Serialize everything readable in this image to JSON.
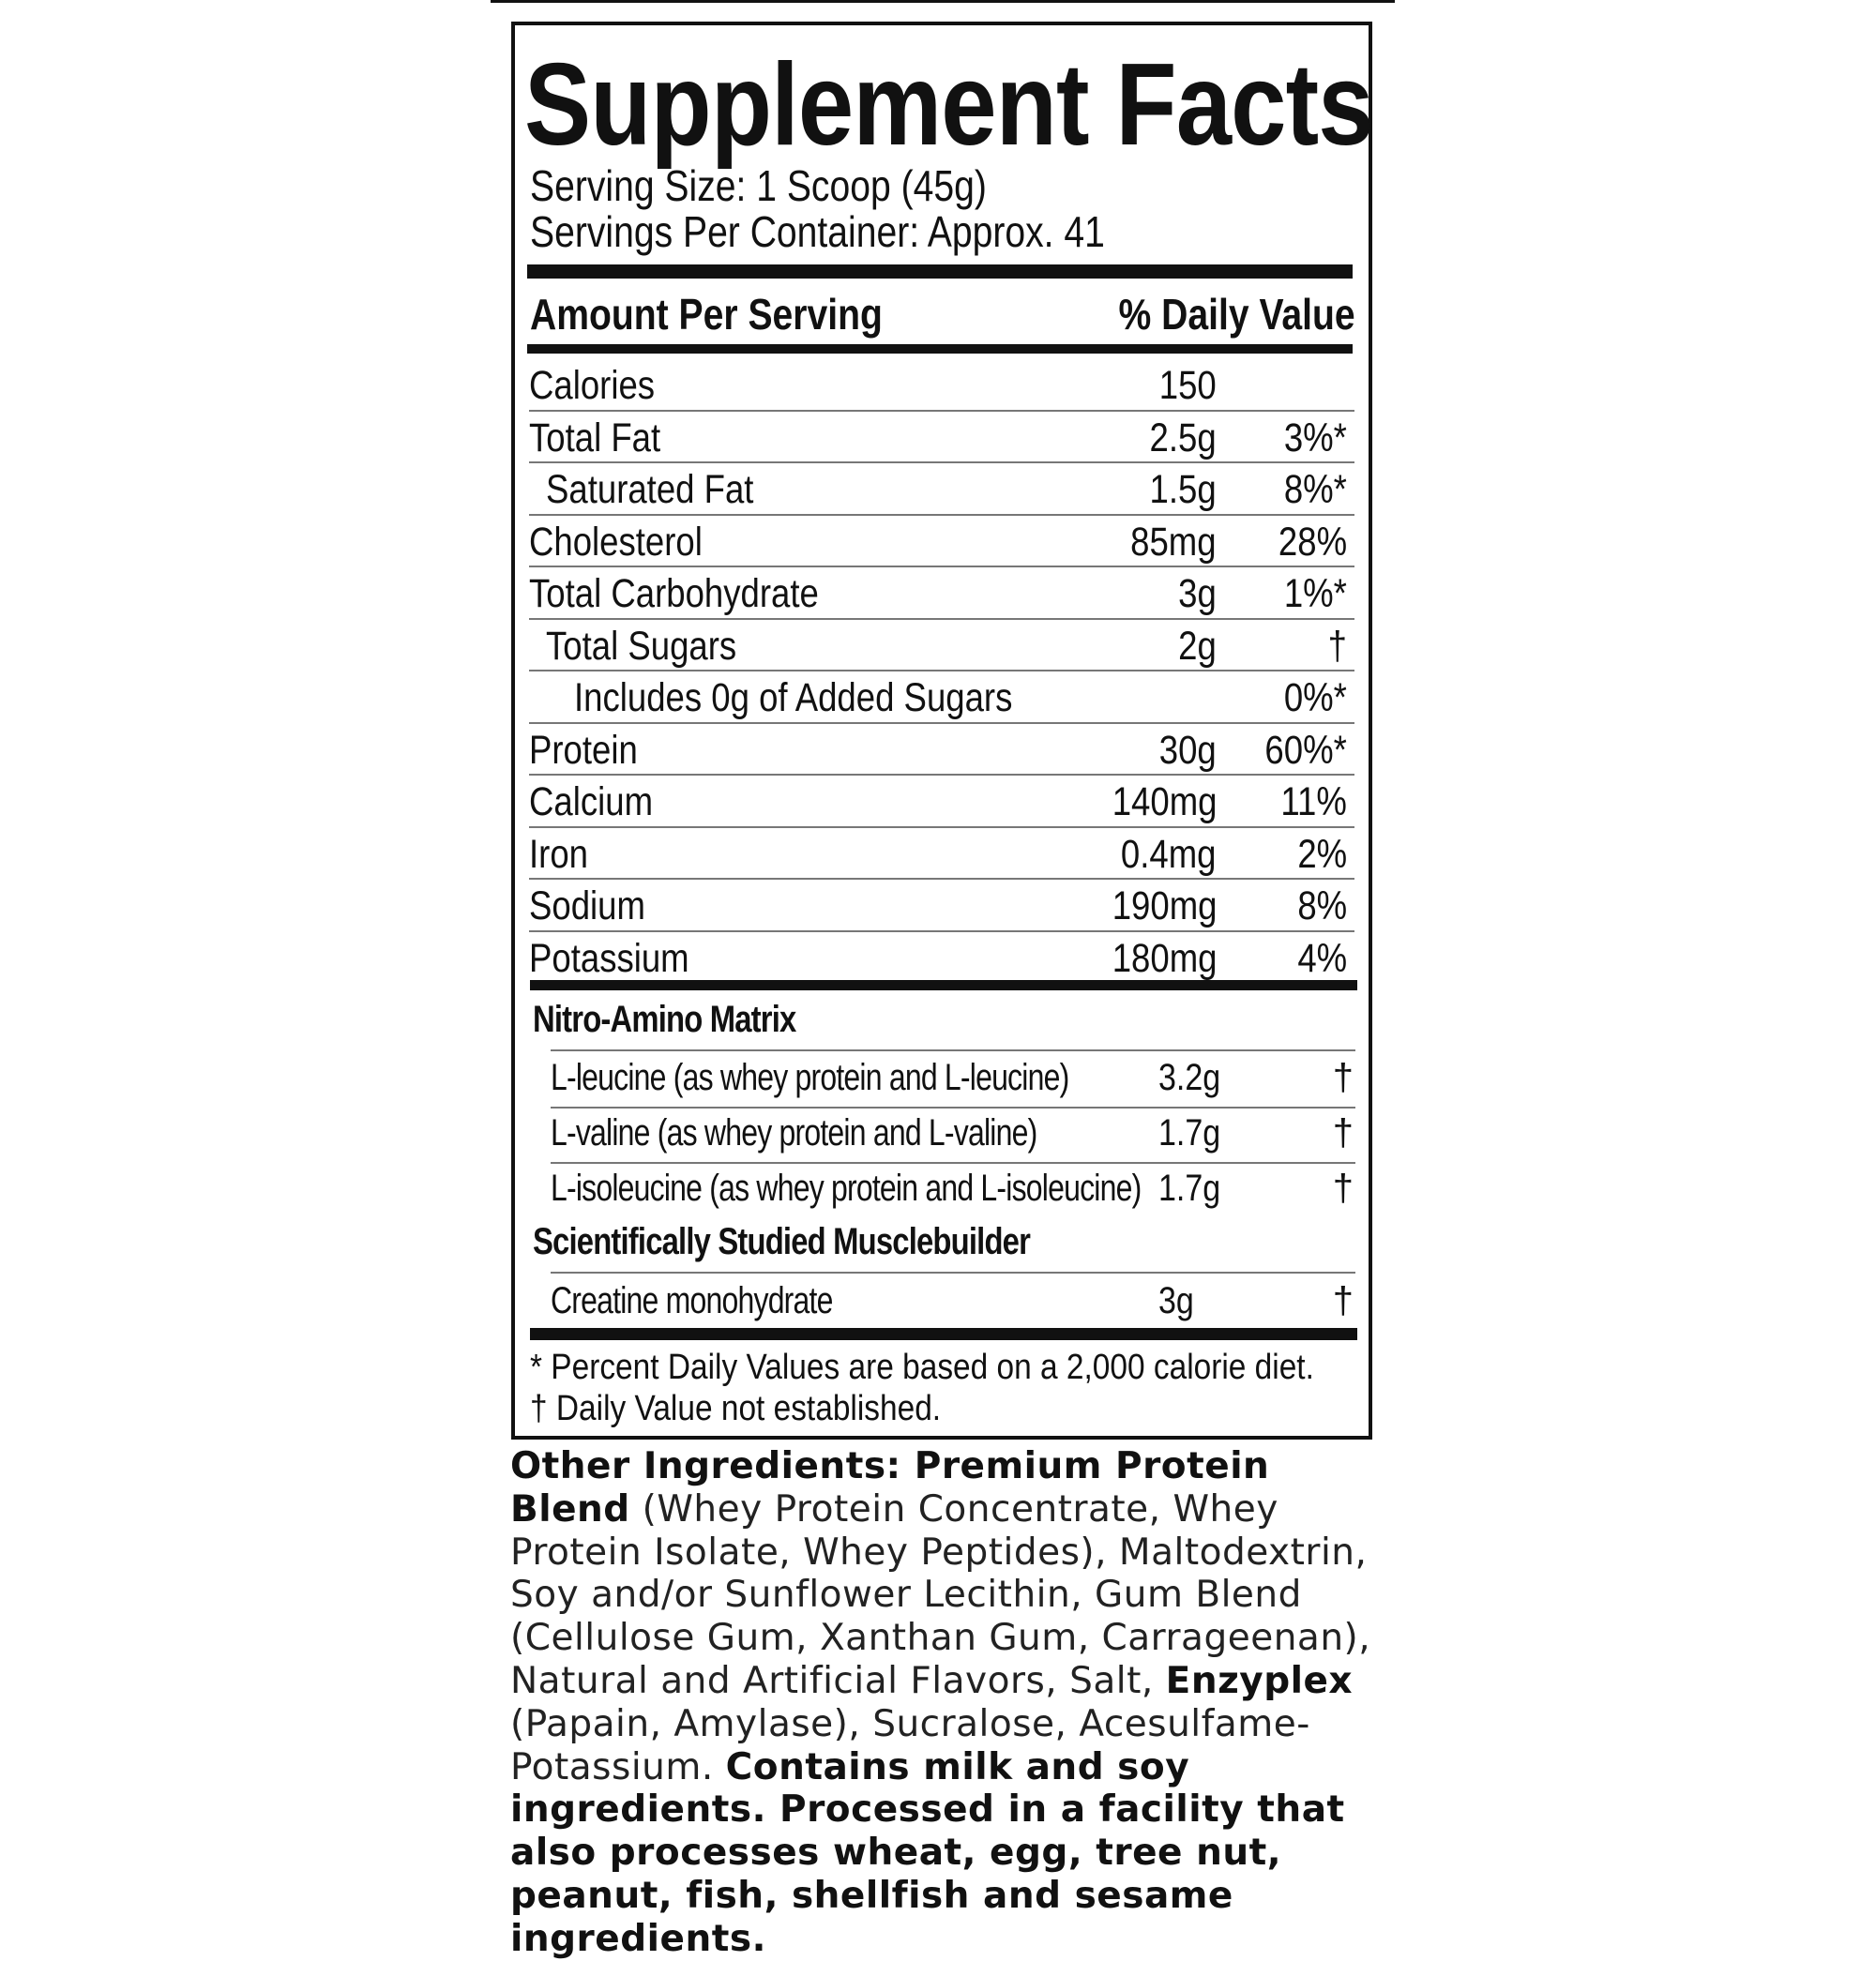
{
  "title": "Supplement Facts",
  "serving_size": "Serving Size: 1 Scoop (45g)",
  "servings_per_container": "Servings Per Container: Approx. 41",
  "header": {
    "amount": "Amount Per Serving",
    "dv": "% Daily Value"
  },
  "nutrients": [
    {
      "label": "Calories",
      "amount": "150",
      "dv": "",
      "indent": 0
    },
    {
      "label": "Total Fat",
      "amount": "2.5g",
      "dv": "3%*",
      "indent": 0
    },
    {
      "label": "Saturated Fat",
      "amount": "1.5g",
      "dv": "8%*",
      "indent": 1
    },
    {
      "label": "Cholesterol",
      "amount": "85mg",
      "dv": "28%",
      "indent": 0
    },
    {
      "label": "Total Carbohydrate",
      "amount": "3g",
      "dv": "1%*",
      "indent": 0
    },
    {
      "label": "Total Sugars",
      "amount": "2g",
      "dv": "†",
      "indent": 1
    },
    {
      "label": "Includes 0g of Added Sugars",
      "amount": "",
      "dv": "0%*",
      "indent": 2
    },
    {
      "label": "Protein",
      "amount": "30g",
      "dv": "60%*",
      "indent": 0
    },
    {
      "label": "Calcium",
      "amount": "140mg",
      "dv": "11%",
      "indent": 0
    },
    {
      "label": "Iron",
      "amount": "0.4mg",
      "dv": "2%",
      "indent": 0
    },
    {
      "label": "Sodium",
      "amount": "190mg",
      "dv": "8%",
      "indent": 0
    },
    {
      "label": "Potassium",
      "amount": "180mg",
      "dv": "4%",
      "indent": 0
    }
  ],
  "blend1": {
    "title": "Nitro-Amino Matrix",
    "items": [
      {
        "label": "L-leucine (as whey protein and L-leucine)",
        "amount": "3.2g",
        "dv": "†"
      },
      {
        "label": "L-valine (as whey protein and L-valine)",
        "amount": "1.7g",
        "dv": "†"
      },
      {
        "label": "L-isoleucine (as whey protein and L-isoleucine)",
        "amount": "1.7g",
        "dv": "†"
      }
    ]
  },
  "blend2": {
    "title": "Scientifically Studied Musclebuilder",
    "items": [
      {
        "label": "Creatine monohydrate",
        "amount": "3g",
        "dv": "†"
      }
    ]
  },
  "footnotes": [
    "* Percent Daily Values are based on a 2,000 calorie diet.",
    "† Daily Value not established."
  ],
  "ingredients": [
    {
      "text": "Other Ingredients: Premium Protein Blend",
      "bold": true
    },
    {
      "text": " (Whey Protein Concentrate, Whey Protein Isolate, Whey Peptides), Maltodextrin, Soy and/or Sunflower Lecithin, Gum Blend (Cellulose Gum, Xanthan Gum, Carrageenan), Natural and Artificial Flavors, Salt, ",
      "bold": false
    },
    {
      "text": "Enzyplex",
      "bold": true
    },
    {
      "text": " (Papain, Amylase), Sucralose, Acesulfame-Potassium. ",
      "bold": false
    },
    {
      "text": "Contains milk and soy ingredients. Processed in a facility that also processes wheat, egg, tree nut, peanut, fish, shellfish and sesame ingredients.",
      "bold": true
    }
  ]
}
